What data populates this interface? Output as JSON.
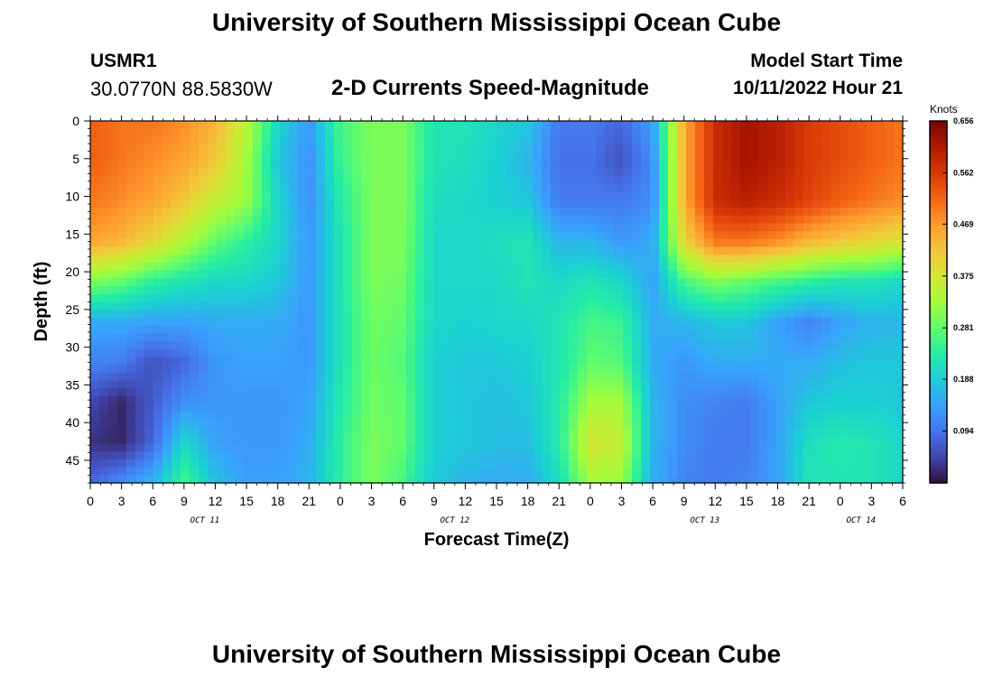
{
  "header": {
    "title": "University of Southern Mississippi Ocean Cube",
    "station_id": "USMR1",
    "coordinates": "30.0770N  88.5830W",
    "subtitle": "2-D Currents Speed-Magnitude",
    "model_start_label": "Model Start Time",
    "model_start_value": "10/11/2022 Hour 21"
  },
  "footer": {
    "title": "University of Southern Mississippi Ocean Cube"
  },
  "chart_data": {
    "type": "heatmap",
    "xlabel": "Forecast Time(Z)",
    "ylabel": "Depth (ft)",
    "x_tick_labels": [
      "0",
      "3",
      "6",
      "9",
      "12",
      "15",
      "18",
      "21",
      "0",
      "3",
      "6",
      "9",
      "12",
      "15",
      "18",
      "21",
      "0",
      "3",
      "6",
      "9",
      "12",
      "15",
      "18",
      "21",
      "0",
      "3",
      "6"
    ],
    "x_day_labels": [
      {
        "label": "OCT 11",
        "tick_index": 4
      },
      {
        "label": "OCT 12",
        "tick_index": 12
      },
      {
        "label": "OCT 13",
        "tick_index": 20
      },
      {
        "label": "OCT 14",
        "tick_index": 25
      }
    ],
    "y_ticks": [
      0,
      5,
      10,
      15,
      20,
      25,
      30,
      35,
      40,
      45
    ],
    "ylim": [
      0,
      48
    ],
    "xlim_hours": [
      0,
      78
    ],
    "colorbar": {
      "units": "Knots",
      "ticks": [
        "0.656",
        "0.562",
        "0.469",
        "0.375",
        "0.281",
        "0.188",
        "0.094"
      ],
      "range": [
        0,
        0.656
      ],
      "colormap": [
        "#30123b",
        "#4145ab",
        "#4675ed",
        "#39a2fc",
        "#1bcfd4",
        "#24eca6",
        "#61fc6c",
        "#a4fc3b",
        "#d1e834",
        "#f3c63a",
        "#fe9b2d",
        "#f36315",
        "#d93806",
        "#b11901",
        "#7a0403"
      ]
    },
    "speed_knots": [
      [
        0.52,
        0.5,
        0.5,
        0.48,
        0.44,
        0.35,
        0.2,
        0.13,
        0.26,
        0.3,
        0.3,
        0.22,
        0.22,
        0.2,
        0.18,
        0.1,
        0.1,
        0.08,
        0.14,
        0.45,
        0.58,
        0.62,
        0.6,
        0.56,
        0.54,
        0.52,
        0.5
      ],
      [
        0.52,
        0.5,
        0.48,
        0.46,
        0.42,
        0.33,
        0.18,
        0.12,
        0.25,
        0.3,
        0.3,
        0.22,
        0.21,
        0.19,
        0.16,
        0.09,
        0.09,
        0.06,
        0.12,
        0.45,
        0.58,
        0.62,
        0.6,
        0.56,
        0.54,
        0.52,
        0.5
      ],
      [
        0.5,
        0.48,
        0.46,
        0.42,
        0.36,
        0.32,
        0.2,
        0.12,
        0.23,
        0.3,
        0.3,
        0.21,
        0.2,
        0.19,
        0.18,
        0.1,
        0.1,
        0.1,
        0.12,
        0.45,
        0.58,
        0.6,
        0.58,
        0.55,
        0.52,
        0.5,
        0.48
      ],
      [
        0.46,
        0.44,
        0.4,
        0.34,
        0.28,
        0.24,
        0.2,
        0.13,
        0.22,
        0.3,
        0.3,
        0.2,
        0.2,
        0.21,
        0.22,
        0.16,
        0.16,
        0.13,
        0.15,
        0.4,
        0.5,
        0.5,
        0.48,
        0.44,
        0.42,
        0.4,
        0.38
      ],
      [
        0.3,
        0.28,
        0.24,
        0.22,
        0.2,
        0.2,
        0.18,
        0.13,
        0.22,
        0.3,
        0.29,
        0.2,
        0.2,
        0.2,
        0.22,
        0.2,
        0.22,
        0.2,
        0.14,
        0.26,
        0.3,
        0.28,
        0.26,
        0.24,
        0.22,
        0.22,
        0.2
      ],
      [
        0.15,
        0.15,
        0.14,
        0.14,
        0.15,
        0.15,
        0.15,
        0.13,
        0.22,
        0.29,
        0.28,
        0.2,
        0.19,
        0.2,
        0.2,
        0.22,
        0.26,
        0.25,
        0.15,
        0.16,
        0.18,
        0.18,
        0.14,
        0.11,
        0.14,
        0.16,
        0.16
      ],
      [
        0.11,
        0.1,
        0.06,
        0.08,
        0.13,
        0.14,
        0.14,
        0.13,
        0.22,
        0.29,
        0.27,
        0.19,
        0.18,
        0.18,
        0.19,
        0.22,
        0.28,
        0.27,
        0.15,
        0.13,
        0.15,
        0.15,
        0.15,
        0.15,
        0.17,
        0.18,
        0.18
      ],
      [
        0.05,
        0.02,
        0.07,
        0.12,
        0.13,
        0.13,
        0.13,
        0.14,
        0.23,
        0.29,
        0.28,
        0.19,
        0.18,
        0.17,
        0.18,
        0.23,
        0.33,
        0.33,
        0.16,
        0.12,
        0.11,
        0.1,
        0.14,
        0.18,
        0.19,
        0.19,
        0.18
      ],
      [
        0.03,
        0.02,
        0.08,
        0.2,
        0.14,
        0.13,
        0.13,
        0.15,
        0.24,
        0.3,
        0.28,
        0.19,
        0.18,
        0.17,
        0.17,
        0.23,
        0.38,
        0.36,
        0.16,
        0.12,
        0.1,
        0.1,
        0.14,
        0.21,
        0.23,
        0.22,
        0.2
      ],
      [
        0.08,
        0.12,
        0.16,
        0.26,
        0.17,
        0.14,
        0.14,
        0.16,
        0.24,
        0.3,
        0.26,
        0.18,
        0.16,
        0.15,
        0.15,
        0.21,
        0.33,
        0.32,
        0.15,
        0.11,
        0.1,
        0.11,
        0.14,
        0.22,
        0.22,
        0.22,
        0.2
      ]
    ]
  }
}
